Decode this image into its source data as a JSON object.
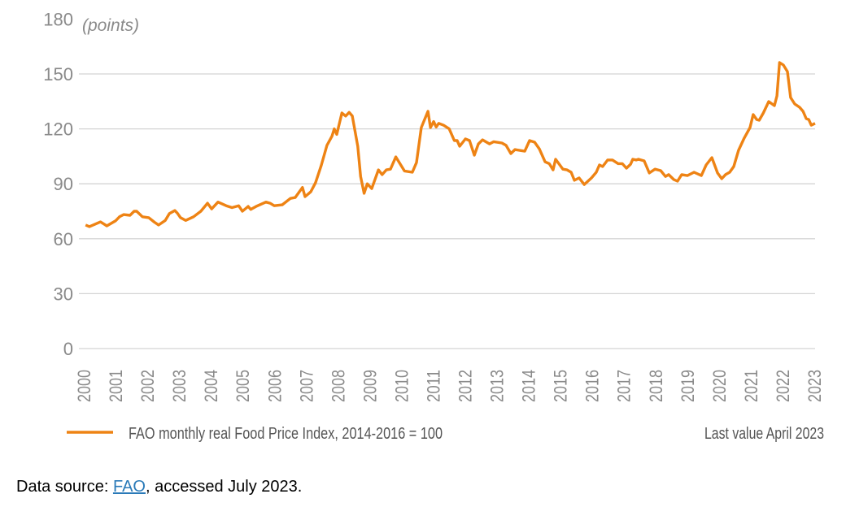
{
  "chart_data": {
    "type": "line",
    "ylabel": "(points)",
    "ylim": [
      0,
      180
    ],
    "yticks": [
      0,
      30,
      60,
      90,
      120,
      150,
      180
    ],
    "xlim": [
      2000,
      2023
    ],
    "xticks": [
      "2000",
      "2001",
      "2002",
      "2003",
      "2004",
      "2005",
      "2006",
      "2007",
      "2008",
      "2009",
      "2010",
      "2011",
      "2012",
      "2013",
      "2014",
      "2015",
      "2016",
      "2017",
      "2018",
      "2019",
      "2020",
      "2021",
      "2022",
      "2023"
    ],
    "grid": true,
    "legend_placement": "bottom",
    "line_color": "#ee8314",
    "series": [
      {
        "name": "FAO monthly real Food Price Index, 2014-2016 = 100",
        "x": [
          2000.03,
          2000.15,
          2000.5,
          2000.7,
          2000.97,
          2001.1,
          2001.23,
          2001.43,
          2001.56,
          2001.64,
          2001.82,
          2002.02,
          2002.2,
          2002.33,
          2002.54,
          2002.67,
          2002.84,
          2002.92,
          2003.02,
          2003.18,
          2003.43,
          2003.66,
          2003.87,
          2004.0,
          2004.2,
          2004.46,
          2004.64,
          2004.85,
          2004.97,
          2005.15,
          2005.23,
          2005.4,
          2005.71,
          2005.84,
          2005.97,
          2006.22,
          2006.48,
          2006.63,
          2006.86,
          2006.94,
          2007.12,
          2007.27,
          2007.45,
          2007.63,
          2007.79,
          2007.86,
          2007.94,
          2008.1,
          2008.22,
          2008.33,
          2008.43,
          2008.6,
          2008.69,
          2008.8,
          2008.9,
          2009.04,
          2009.25,
          2009.37,
          2009.5,
          2009.63,
          2009.8,
          2010.07,
          2010.32,
          2010.45,
          2010.6,
          2010.81,
          2010.89,
          2010.99,
          2011.07,
          2011.15,
          2011.3,
          2011.48,
          2011.64,
          2011.73,
          2011.81,
          2011.99,
          2012.12,
          2012.27,
          2012.4,
          2012.53,
          2012.75,
          2012.88,
          2013.14,
          2013.27,
          2013.42,
          2013.55,
          2013.86,
          2014.01,
          2014.17,
          2014.32,
          2014.5,
          2014.63,
          2014.75,
          2014.83,
          2015.06,
          2015.19,
          2015.32,
          2015.42,
          2015.57,
          2015.73,
          2015.96,
          2016.11,
          2016.21,
          2016.31,
          2016.47,
          2016.62,
          2016.8,
          2016.93,
          2017.06,
          2017.19,
          2017.26,
          2017.37,
          2017.44,
          2017.62,
          2017.78,
          2017.96,
          2018.14,
          2018.29,
          2018.39,
          2018.55,
          2018.67,
          2018.8,
          2018.98,
          2019.19,
          2019.42,
          2019.57,
          2019.75,
          2019.93,
          2020.06,
          2020.18,
          2020.31,
          2020.44,
          2020.59,
          2020.77,
          2020.95,
          2021.05,
          2021.16,
          2021.24,
          2021.37,
          2021.54,
          2021.72,
          2021.8,
          2021.88,
          2022.0,
          2022.13,
          2022.23,
          2022.36,
          2022.51,
          2022.62,
          2022.72,
          2022.8,
          2022.88,
          2023.0
        ],
        "y": [
          67.5,
          66.6,
          69.2,
          67,
          69.7,
          72,
          73.2,
          72.8,
          75,
          75,
          72,
          71.5,
          69,
          67.5,
          70,
          73.7,
          75.4,
          74,
          71.5,
          70,
          72,
          75,
          79.4,
          76.3,
          80,
          78,
          77,
          78,
          75,
          77.6,
          76,
          77.6,
          80,
          79.4,
          78,
          78.5,
          82,
          82.5,
          88,
          83,
          85.6,
          90.5,
          100,
          111,
          116,
          120,
          117,
          128.7,
          127,
          129,
          127,
          110.5,
          94,
          84.8,
          90,
          87.4,
          97.6,
          95,
          97.6,
          98,
          104.7,
          97,
          96.3,
          101.6,
          120.7,
          129.6,
          120.7,
          124,
          121,
          123,
          122,
          120,
          113.6,
          113.6,
          110.5,
          114.5,
          113.6,
          105.6,
          111.8,
          114,
          111.8,
          113,
          112.3,
          111,
          106.5,
          108.7,
          107.8,
          113.6,
          112.7,
          109,
          102,
          101,
          97.6,
          103.4,
          98,
          97.6,
          96.3,
          91.9,
          93.2,
          89.6,
          93.2,
          96.3,
          100.3,
          99.4,
          103,
          103,
          101,
          101,
          98.5,
          100.7,
          103.4,
          103,
          103.4,
          102.5,
          95.9,
          98,
          97.2,
          94,
          95,
          92.3,
          91.4,
          95,
          94.5,
          96.3,
          94.5,
          100.3,
          104.3,
          95.9,
          92.8,
          95,
          96.3,
          99.4,
          108.3,
          115,
          120.7,
          127.8,
          125.1,
          124.7,
          128.7,
          134.9,
          132.7,
          138,
          156.2,
          154.9,
          151.3,
          137.1,
          133.6,
          131.8,
          129.6,
          125.6,
          125.1,
          122,
          123
        ]
      }
    ],
    "annotation": "Last value April 2023"
  },
  "source": {
    "prefix": "Data source: ",
    "link_text": "FAO",
    "suffix": ", accessed July 2023."
  }
}
